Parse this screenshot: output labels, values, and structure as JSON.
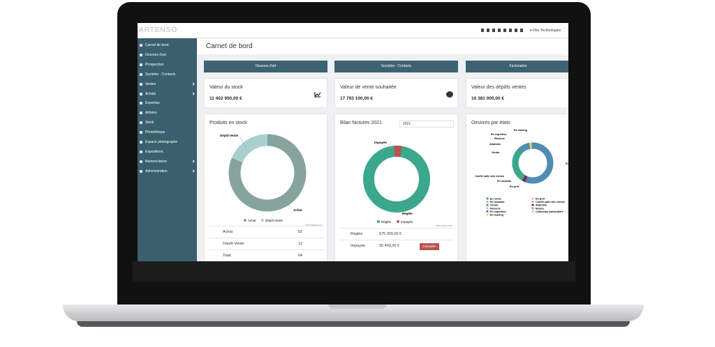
{
  "topbar": {
    "logo": "ARTENSO",
    "company": "e-Obs Technologies"
  },
  "sidebar": [
    "Carnet de bord",
    "Oeuvres d'art",
    "Prospection",
    "Sociétés - Contacts",
    "Ventes",
    "Achats",
    "Expertise",
    "Artistes",
    "Stock",
    "Photothèque",
    "Espace photographe",
    "Expositions",
    "Nomenclature",
    "Administration"
  ],
  "page_title": "Carnet de bord",
  "buttons": [
    "Oeuvres d'art",
    "Sociétés - Contacts",
    "Facturation"
  ],
  "cards": [
    {
      "label": "Valeur du stock",
      "value": "11 402 950,00 €"
    },
    {
      "label": "Valeur de vente souhaitée",
      "value": "17 793 100,00 €"
    },
    {
      "label": "Valeur des dépôts ventes",
      "value": "16 381 000,00 €"
    }
  ],
  "stock": {
    "title": "Produits en stock",
    "rows": [
      [
        "Achat",
        52
      ],
      [
        "Dépôt-Vente",
        12
      ],
      [
        "Total",
        64
      ]
    ],
    "colors": [
      "#86a39e",
      "#a9d0cf"
    ]
  },
  "bilan": {
    "title": "Bilan factures 2021",
    "select": "2021",
    "rows": [
      [
        "Réglée",
        "575 000,00 €"
      ],
      [
        "Impayée",
        "25 400,00 €"
      ]
    ],
    "button": "Consulter"
  },
  "etats": {
    "title": "Oeuvres par états",
    "legend": [
      [
        "En vente",
        "#4f8db5"
      ],
      [
        "En location",
        "#f2a35e"
      ],
      [
        "Vendu",
        "#3aa88c"
      ],
      [
        "Réservé",
        "#8fd1c4"
      ],
      [
        "En expertise",
        "#5a6fa8"
      ],
      [
        "En leasing",
        "#f2d25e"
      ],
      [
        "En prêt",
        "#f4b6c8"
      ],
      [
        "Confié salle des ventes",
        "#c9a0dc"
      ],
      [
        "Abandon",
        "#8b2252"
      ],
      [
        "Rendu",
        "#999999"
      ],
      [
        "Collection particulière",
        "#b5d9b5"
      ]
    ]
  },
  "credit": "Highcharts.com"
}
